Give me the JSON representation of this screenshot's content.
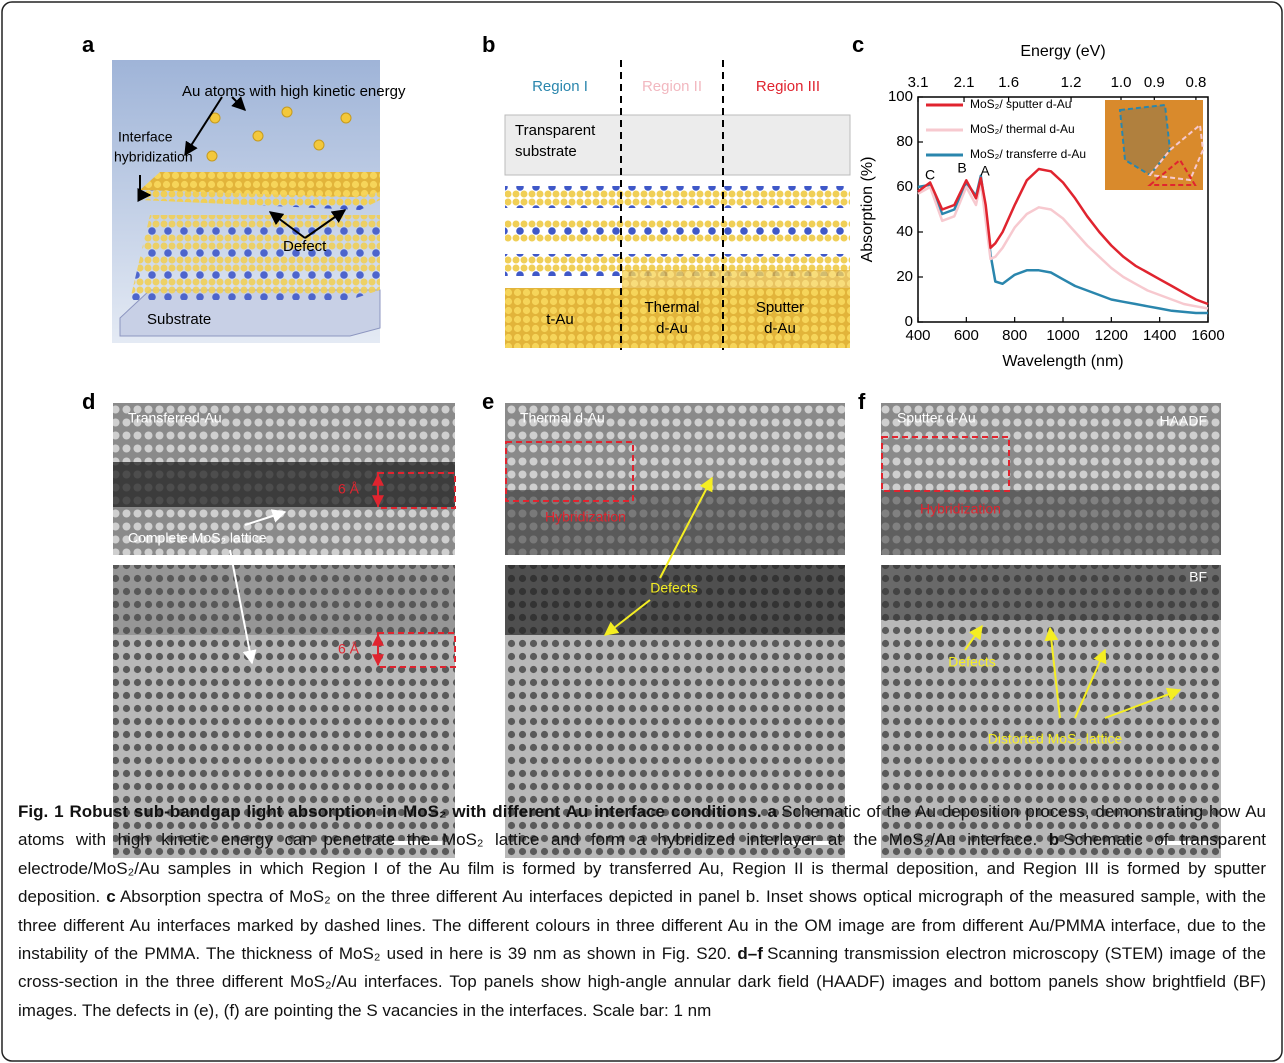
{
  "panels": {
    "a": {
      "label": "a",
      "atoms": "Au atoms with high kinetic energy",
      "interface": [
        "Interface",
        "hybridization"
      ],
      "defect": "Defect",
      "substrate": "Substrate"
    },
    "b": {
      "label": "b",
      "regions": [
        "Region I",
        "Region II",
        "Region III"
      ],
      "substrate": [
        "Transparent",
        "substrate"
      ],
      "t_au": "t-Au",
      "thermal": [
        "Thermal",
        "d-Au"
      ],
      "sputter": [
        "Sputter",
        "d-Au"
      ]
    },
    "c": {
      "label": "c"
    },
    "d": {
      "label": "d",
      "title": "Transferred-Au",
      "gap_top": "6 Å",
      "lattice": "Complete MoS₂ lattice",
      "gap_bottom": "6 Å"
    },
    "e": {
      "label": "e",
      "title": "Thermal d-Au",
      "hybrid": "Hybridization",
      "defects": "Defects"
    },
    "f": {
      "label": "f",
      "title": "Sputter d-Au",
      "haadf": "HAADF",
      "hybrid": "Hybridization",
      "bf": "BF",
      "defects": "Defects",
      "distorted": "Distorted MoS₂ lattice"
    }
  },
  "chart_data": {
    "type": "line",
    "x_label": "Wavelength (nm)",
    "y_label": "Absorption (%)",
    "x2_label": "Energy (eV)",
    "x": [
      400,
      450,
      500,
      550,
      600,
      640,
      660,
      680,
      700,
      720,
      750,
      800,
      850,
      900,
      950,
      1000,
      1050,
      1100,
      1150,
      1200,
      1250,
      1300,
      1350,
      1400,
      1450,
      1500,
      1550,
      1600
    ],
    "series": [
      {
        "name": "MoS₂/ sputter d-Au",
        "color": "#e0242f",
        "values": [
          58,
          62,
          50,
          52,
          63,
          55,
          64,
          52,
          33,
          35,
          40,
          52,
          63,
          68,
          67,
          62,
          55,
          47,
          40,
          34,
          29,
          25,
          22,
          19,
          16,
          13,
          10,
          8
        ]
      },
      {
        "name": "MoS₂/ thermal d-Au",
        "color": "#f7c9cf",
        "values": [
          57,
          60,
          45,
          47,
          60,
          52,
          62,
          45,
          28,
          29,
          33,
          42,
          48,
          51,
          50,
          46,
          40,
          34,
          29,
          24,
          20,
          17,
          14,
          12,
          10,
          8,
          7,
          6
        ]
      },
      {
        "name": "MoS₂/ transferre d-Au",
        "color": "#2a86ad",
        "values": [
          60,
          61,
          48,
          50,
          62,
          56,
          65,
          50,
          30,
          18,
          17,
          21,
          23,
          23,
          22,
          19,
          16,
          14,
          12,
          10,
          9,
          8,
          7,
          6,
          5,
          4.5,
          4,
          4
        ]
      }
    ],
    "xlim": [
      400,
      1600
    ],
    "ylim": [
      0,
      100
    ],
    "xticks": [
      400,
      600,
      800,
      1000,
      1200,
      1400,
      1600
    ],
    "yticks": [
      0,
      20,
      40,
      60,
      80,
      100
    ],
    "x2ticks": [
      3.1,
      2.1,
      1.6,
      1.2,
      {
        "value": 1,
        "label": "1.0"
      },
      0.9,
      0.8
    ],
    "annotations": [
      "A",
      "B",
      "C"
    ],
    "legend": "upper left"
  },
  "caption": {
    "title": "Fig. 1 Robust sub-bandgap light absorption in MoS₂ with different Au interface conditions.",
    "parts": [
      {
        "label": "a",
        "text": "Schematic of the Au deposition process, demonstrating how Au atoms with high kinetic energy can penetrate the MoS₂ lattice and form a hybridized interlayer at the MoS₂/Au interface."
      },
      {
        "label": "b",
        "text": "Schematic of transparent electrode/MoS₂/Au samples in which Region I of the Au film is formed by transferred Au, Region II is thermal deposition, and Region III is formed by sputter deposition."
      },
      {
        "label": "c",
        "text": "Absorption spectra of MoS₂ on the three different Au interfaces depicted in panel b. Inset shows optical micrograph of the measured sample, with the three different Au interfaces marked by dashed lines. The different colours in three different Au in the OM image are from different Au/PMMA interface, due to the instability of the PMMA. The thickness of MoS₂ used in here is 39 nm as shown in Fig. S20."
      },
      {
        "label": "d–f",
        "text": "Scanning transmission electron microscopy (STEM) image of the cross-section in the three different MoS₂/Au interfaces. Top panels show high-angle annular dark field (HAADF) images and bottom panels show brightfield (BF) images. The defects in (e), (f) are pointing the S vacancies in the interfaces. Scale bar: 1 nm"
      }
    ]
  }
}
